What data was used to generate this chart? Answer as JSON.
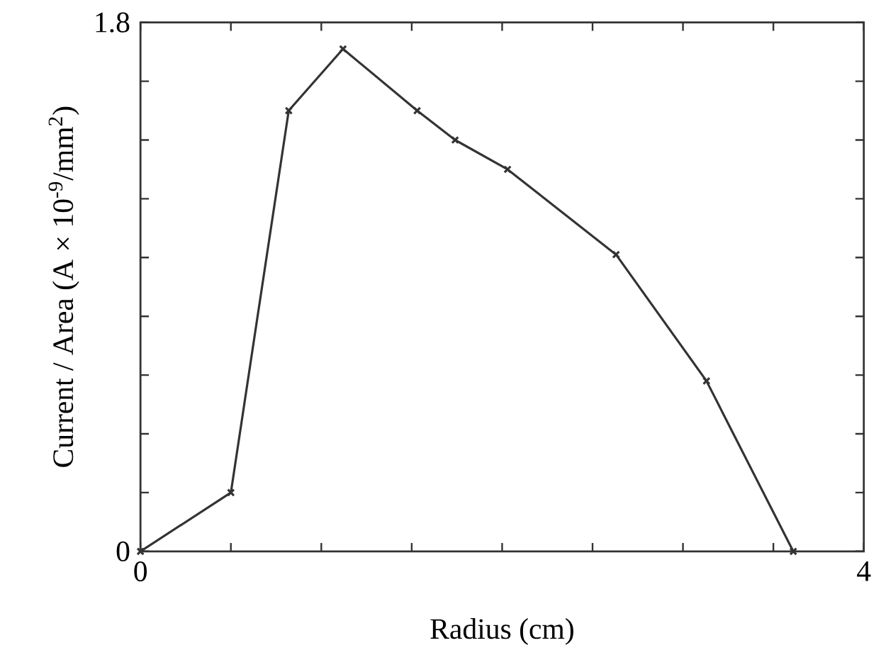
{
  "chart_data": {
    "type": "line",
    "xlabel": "Radius (cm)",
    "ylabel": "Current / Area (A × 10$^{-9}$/mm$^{2}$)",
    "x": [
      0,
      0.5,
      0.82,
      1.12,
      1.53,
      1.74,
      2.03,
      2.63,
      3.13,
      3.61
    ],
    "series": [
      {
        "color": "#333333",
        "values": [
          0,
          0.2,
          1.5,
          1.71,
          1.5,
          1.4,
          1.3,
          1.01,
          0.58,
          0
        ]
      }
    ],
    "xlim": [
      0,
      4
    ],
    "ylim": [
      0,
      1.8
    ],
    "xticks": [
      0,
      {
        "value": 0.5,
        "label": null
      },
      {
        "value": 1,
        "label": null
      },
      {
        "value": 1.5,
        "label": null
      },
      {
        "value": 2,
        "label": null
      },
      {
        "value": 2.5,
        "label": null
      },
      {
        "value": 3,
        "label": null
      },
      {
        "value": 3.5,
        "label": null
      },
      4
    ],
    "yticks": [
      0,
      {
        "value": 0.2,
        "label": null
      },
      {
        "value": 0.4,
        "label": null
      },
      {
        "value": 0.6,
        "label": null
      },
      {
        "value": 0.8,
        "label": null
      },
      {
        "value": 1,
        "label": null
      },
      {
        "value": 1.2,
        "label": null
      },
      {
        "value": 1.4,
        "label": null
      },
      {
        "value": 1.6,
        "label": null
      },
      1.8
    ],
    "marker": "cross",
    "line_style": "solid"
  }
}
